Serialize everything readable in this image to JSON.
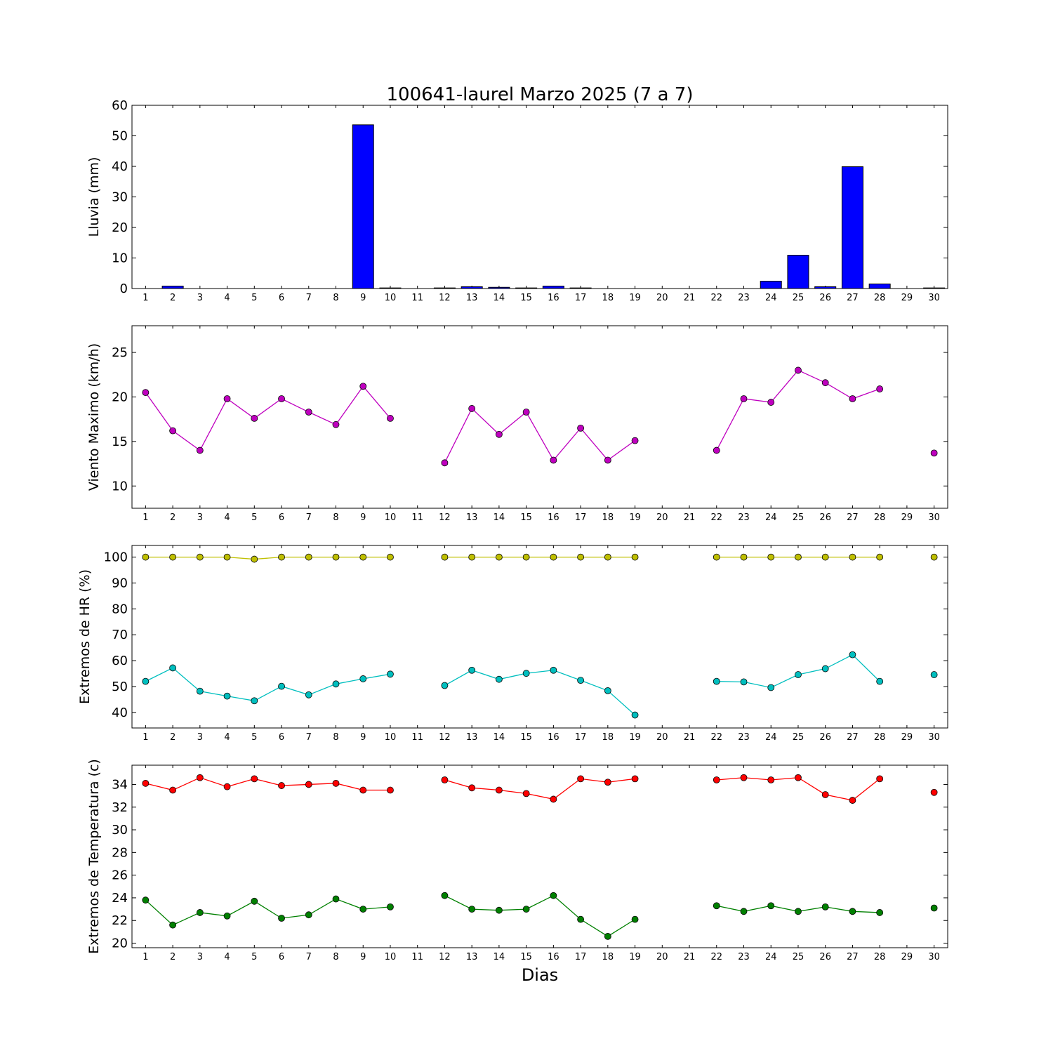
{
  "title": "100641-laurel Marzo 2025  (7 a 7)",
  "xlabel": "Dias",
  "colors": {
    "rain": "#0000ff",
    "wind": "#bf00bf",
    "hr_max": "#bfbf00",
    "hr_min": "#00bfbf",
    "t_max": "#ff0000",
    "t_min": "#008000"
  },
  "chart_data": [
    {
      "type": "bar",
      "ylabel": "Lluvia (mm)",
      "ylim": [
        0,
        60
      ],
      "yticks": [
        0,
        10,
        20,
        30,
        40,
        50,
        60
      ],
      "x": [
        1,
        2,
        3,
        4,
        5,
        6,
        7,
        8,
        9,
        10,
        11,
        12,
        13,
        14,
        15,
        16,
        17,
        18,
        19,
        20,
        21,
        22,
        23,
        24,
        25,
        26,
        27,
        28,
        29,
        30
      ],
      "series": [
        {
          "values": [
            0,
            0.8,
            0,
            0,
            0,
            0,
            0,
            0,
            53.6,
            0.2,
            0,
            0.2,
            0.6,
            0.4,
            0.2,
            0.8,
            0.2,
            0,
            0,
            0,
            0,
            0,
            0,
            2.4,
            10.9,
            0.6,
            39.9,
            1.5,
            0,
            0.2
          ]
        }
      ]
    },
    {
      "type": "line",
      "ylabel": "Viento Maximo (km/h)",
      "ylim": [
        7.5,
        28
      ],
      "yticks": [
        10,
        15,
        20,
        25
      ],
      "x": [
        1,
        2,
        3,
        4,
        5,
        6,
        7,
        8,
        9,
        10,
        11,
        12,
        13,
        14,
        15,
        16,
        17,
        18,
        19,
        20,
        21,
        22,
        23,
        24,
        25,
        26,
        27,
        28,
        29,
        30
      ],
      "series": [
        {
          "values": [
            20.5,
            16.2,
            14.0,
            19.8,
            17.6,
            19.8,
            18.3,
            16.9,
            21.2,
            17.6,
            null,
            12.6,
            18.7,
            15.8,
            18.3,
            12.9,
            16.5,
            12.9,
            15.1,
            null,
            null,
            14.0,
            19.8,
            19.4,
            23.0,
            21.6,
            19.8,
            20.9,
            null,
            13.7
          ]
        }
      ]
    },
    {
      "type": "line",
      "ylabel": "Extremos de HR (%)",
      "ylim": [
        34,
        104.5
      ],
      "yticks": [
        40,
        50,
        60,
        70,
        80,
        90,
        100
      ],
      "x": [
        1,
        2,
        3,
        4,
        5,
        6,
        7,
        8,
        9,
        10,
        11,
        12,
        13,
        14,
        15,
        16,
        17,
        18,
        19,
        20,
        21,
        22,
        23,
        24,
        25,
        26,
        27,
        28,
        29,
        30
      ],
      "series": [
        {
          "values": [
            100,
            100,
            100,
            100,
            99.2,
            100,
            100,
            100,
            100,
            100,
            null,
            100,
            100,
            100,
            100,
            100,
            100,
            100,
            100,
            null,
            null,
            100,
            100,
            100,
            100,
            100,
            100,
            100,
            null,
            100
          ]
        },
        {
          "values": [
            52.0,
            57.2,
            48.2,
            46.3,
            44.5,
            50.1,
            46.8,
            51.0,
            53.0,
            54.8,
            null,
            50.4,
            56.3,
            52.8,
            55.1,
            56.3,
            52.4,
            48.4,
            39.0,
            null,
            null,
            52.0,
            51.8,
            49.6,
            54.6,
            56.9,
            62.3,
            52.0,
            null,
            54.6
          ]
        }
      ]
    },
    {
      "type": "line",
      "ylabel": "Extremos de Temperatura (c)",
      "ylim": [
        19.6,
        35.7
      ],
      "yticks": [
        20,
        22,
        24,
        26,
        28,
        30,
        32,
        34
      ],
      "x": [
        1,
        2,
        3,
        4,
        5,
        6,
        7,
        8,
        9,
        10,
        11,
        12,
        13,
        14,
        15,
        16,
        17,
        18,
        19,
        20,
        21,
        22,
        23,
        24,
        25,
        26,
        27,
        28,
        29,
        30
      ],
      "series": [
        {
          "values": [
            34.1,
            33.5,
            34.6,
            33.8,
            34.5,
            33.9,
            34.0,
            34.1,
            33.5,
            33.5,
            null,
            34.4,
            33.7,
            33.5,
            33.2,
            32.7,
            34.5,
            34.2,
            34.5,
            null,
            null,
            34.4,
            34.6,
            34.4,
            34.6,
            33.1,
            32.6,
            34.5,
            null,
            33.3
          ]
        },
        {
          "values": [
            23.8,
            21.6,
            22.7,
            22.4,
            23.7,
            22.2,
            22.5,
            23.9,
            23.0,
            23.2,
            null,
            24.2,
            23.0,
            22.9,
            23.0,
            24.2,
            22.1,
            20.6,
            22.1,
            null,
            null,
            23.3,
            22.8,
            23.3,
            22.8,
            23.2,
            22.8,
            22.7,
            null,
            23.1
          ]
        }
      ]
    }
  ]
}
